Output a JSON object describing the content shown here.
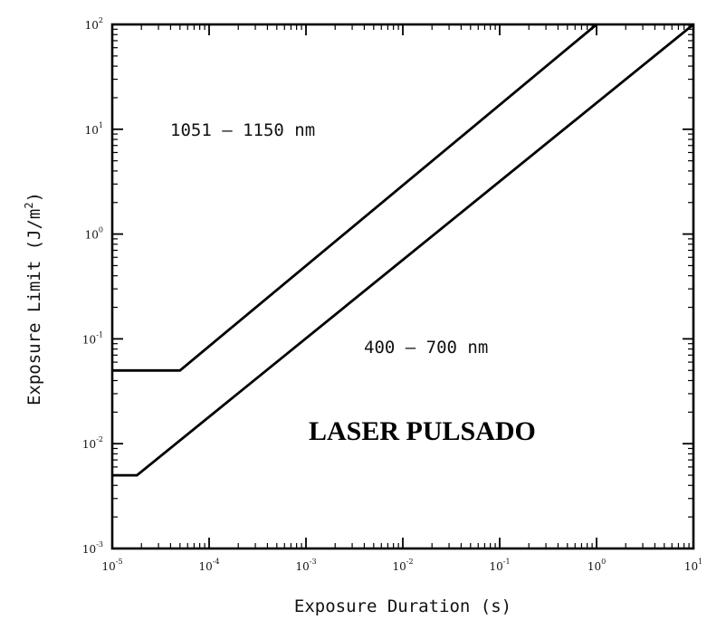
{
  "chart_data": {
    "type": "line",
    "xlabel": "Exposure Duration (s)",
    "ylabel": "Exposure Limit (J/m",
    "ylabel_sup": "2",
    "ylabel_end": ")",
    "xscale": "log",
    "yscale": "log",
    "xlim": [
      1e-05,
      10
    ],
    "ylim": [
      0.001,
      100
    ],
    "grid": false,
    "x_ticks": [
      {
        "base": "10",
        "exp": "-5",
        "value": 1e-05
      },
      {
        "base": "10",
        "exp": "-4",
        "value": 0.0001
      },
      {
        "base": "10",
        "exp": "-3",
        "value": 0.001
      },
      {
        "base": "10",
        "exp": "-2",
        "value": 0.01
      },
      {
        "base": "10",
        "exp": "-1",
        "value": 0.1
      },
      {
        "base": "10",
        "exp": "0",
        "value": 1
      },
      {
        "base": "10",
        "exp": "1",
        "value": 10
      }
    ],
    "y_ticks": [
      {
        "base": "10",
        "exp": "-3",
        "value": 0.001
      },
      {
        "base": "10",
        "exp": "-2",
        "value": 0.01
      },
      {
        "base": "10",
        "exp": "-1",
        "value": 0.1
      },
      {
        "base": "10",
        "exp": "0",
        "value": 1
      },
      {
        "base": "10",
        "exp": "1",
        "value": 10
      },
      {
        "base": "10",
        "exp": "2",
        "value": 100
      }
    ],
    "series": [
      {
        "key": "s1051",
        "points": [
          {
            "x": 1e-05,
            "y": 0.05
          },
          {
            "x": 5e-05,
            "y": 0.05
          },
          {
            "x": 1,
            "y": 100
          }
        ]
      },
      {
        "key": "s400",
        "points": [
          {
            "x": 1e-05,
            "y": 0.005
          },
          {
            "x": 1.8e-05,
            "y": 0.005
          },
          {
            "x": 10,
            "y": 100
          }
        ]
      }
    ],
    "annotations": {
      "label_1051": "1051 – 1150 nm",
      "label_400": "400 – 700 nm",
      "overlay_title": "LASER PULSADO"
    }
  }
}
